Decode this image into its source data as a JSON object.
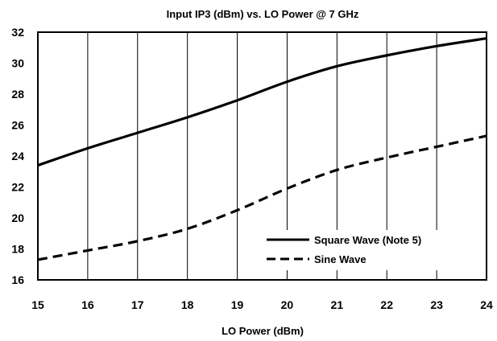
{
  "chart_data": {
    "type": "line",
    "title": "Input IP3 (dBm) vs. LO Power @ 7 GHz",
    "xlabel": "LO Power (dBm)",
    "ylabel": "",
    "xlim": [
      15,
      24
    ],
    "ylim": [
      16,
      32
    ],
    "xticks": [
      15,
      16,
      17,
      18,
      19,
      20,
      21,
      22,
      23,
      24
    ],
    "yticks": [
      16,
      18,
      20,
      22,
      24,
      26,
      28,
      30,
      32
    ],
    "grid": "vertical",
    "legend_position": "bottom-right",
    "series": [
      {
        "name": "Square Wave (Note 5)",
        "style": "solid",
        "color": "#000000",
        "x": [
          15,
          16,
          17,
          18,
          19,
          20,
          21,
          22,
          23,
          24
        ],
        "y": [
          23.4,
          24.5,
          25.5,
          26.5,
          27.6,
          28.8,
          29.8,
          30.5,
          31.1,
          31.6
        ]
      },
      {
        "name": "Sine Wave",
        "style": "dashed",
        "color": "#000000",
        "x": [
          15,
          16,
          17,
          18,
          19,
          20,
          21,
          22,
          23,
          24
        ],
        "y": [
          17.3,
          17.9,
          18.5,
          19.3,
          20.5,
          21.9,
          23.1,
          23.9,
          24.6,
          25.3
        ]
      }
    ]
  }
}
